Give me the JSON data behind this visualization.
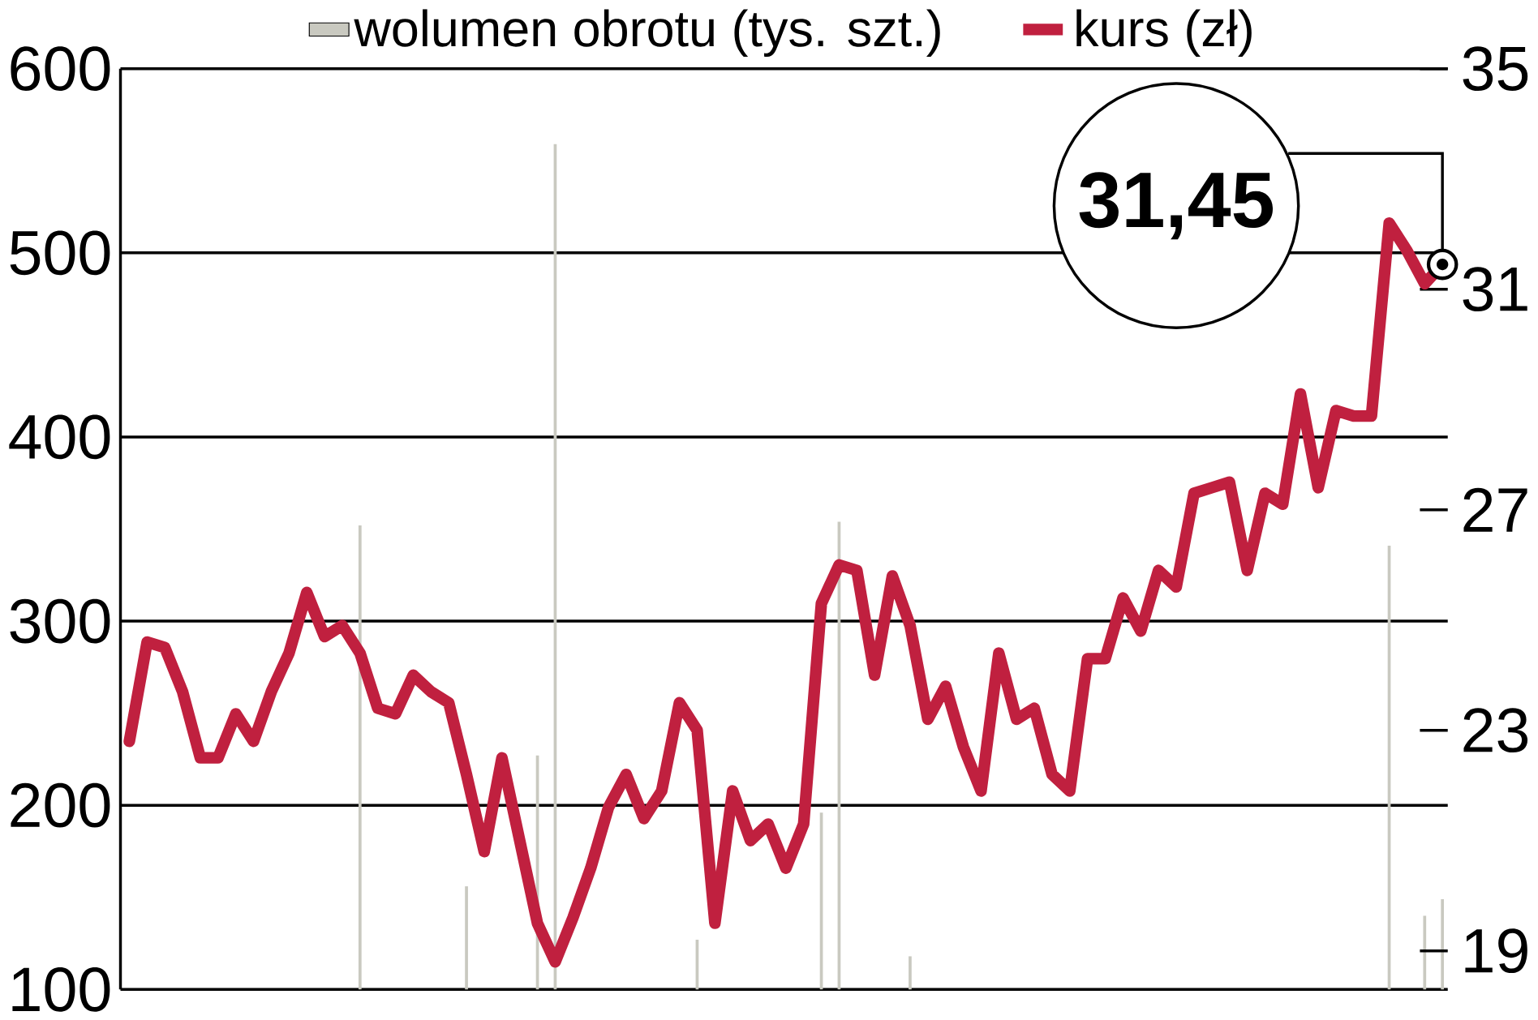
{
  "chart_data": {
    "type": "line",
    "categories": [
      null,
      null,
      null,
      null,
      null,
      null,
      null,
      null,
      null,
      null,
      null,
      null,
      null,
      null,
      null,
      null,
      null,
      null,
      null,
      null,
      null,
      null,
      null,
      null,
      null,
      null,
      null,
      null,
      null,
      null,
      null,
      null,
      null,
      null,
      null,
      null,
      null,
      null,
      null,
      null,
      null,
      null,
      null,
      null,
      null,
      null,
      null,
      null,
      null,
      null,
      null,
      null,
      null,
      null,
      null,
      null,
      null,
      null,
      null,
      null,
      null,
      null,
      null,
      null,
      null,
      null,
      null,
      null,
      null,
      null,
      null,
      null,
      null,
      null,
      null
    ],
    "series": [
      {
        "name": "wolumen obrotu (tys. szt.)",
        "type": "bar",
        "color": "#c9c9c0",
        "values": [
          null,
          null,
          null,
          null,
          null,
          null,
          null,
          null,
          null,
          null,
          null,
          null,
          null,
          352,
          null,
          null,
          null,
          null,
          null,
          156,
          null,
          null,
          null,
          227,
          559,
          null,
          null,
          null,
          null,
          null,
          null,
          null,
          127,
          null,
          null,
          null,
          null,
          null,
          null,
          196,
          354,
          null,
          null,
          null,
          118,
          null,
          null,
          null,
          null,
          null,
          null,
          null,
          null,
          null,
          null,
          null,
          null,
          null,
          null,
          null,
          null,
          null,
          null,
          null,
          null,
          null,
          null,
          null,
          null,
          null,
          null,
          341,
          null,
          140,
          149
        ]
      },
      {
        "name": "kurs (zł)",
        "axis": "y2",
        "color": "#c0203f",
        "values": [
          22.8,
          24.6,
          24.5,
          23.7,
          22.5,
          22.5,
          23.3,
          22.8,
          23.7,
          24.4,
          25.5,
          24.7,
          24.9,
          24.4,
          23.4,
          23.3,
          24.0,
          23.7,
          23.5,
          22.2,
          20.8,
          22.5,
          21.0,
          19.5,
          18.8,
          19.6,
          20.5,
          21.6,
          22.2,
          21.4,
          21.9,
          23.5,
          23.0,
          19.5,
          21.9,
          21.0,
          21.3,
          20.5,
          21.3,
          25.3,
          26.0,
          25.9,
          24.0,
          25.8,
          24.9,
          23.2,
          23.8,
          22.7,
          21.9,
          24.4,
          23.2,
          23.4,
          22.2,
          21.9,
          24.3,
          24.3,
          25.4,
          24.8,
          25.9,
          25.6,
          27.3,
          27.4,
          27.5,
          25.9,
          27.3,
          27.1,
          29.1,
          27.4,
          28.8,
          28.7,
          28.7,
          32.2,
          31.7,
          31.1,
          31.45
        ]
      }
    ],
    "ylim": [
      100,
      600
    ],
    "yticks": [
      600,
      500,
      400,
      300,
      200,
      100
    ],
    "y2lim": [
      18.3,
      35
    ],
    "y2ticks": [
      35,
      31,
      27,
      23,
      19
    ],
    "grid": "y",
    "legend": "top",
    "annotations": [
      "31,45"
    ]
  }
}
